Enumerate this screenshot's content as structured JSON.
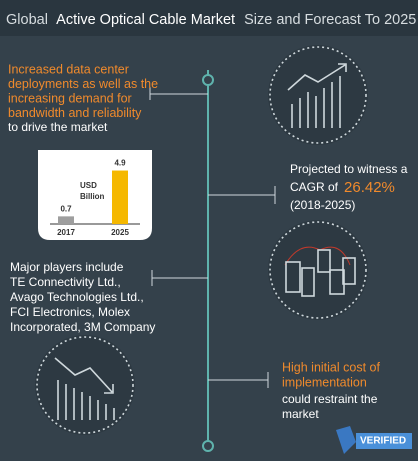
{
  "header": {
    "title_parts": [
      "Global",
      "Active Optical Cable Market",
      "Size and Forecast To 2025"
    ]
  },
  "blocks": [
    {
      "highlight_lines": [
        "Increased data center",
        "deployments as well as the",
        "increasing demand for",
        "bandwidth and reliability"
      ],
      "lines": [
        "to drive the market"
      ]
    },
    {
      "lines_before": [
        "Projected to witness a"
      ],
      "prefix": "CAGR of",
      "highlight": "26.42%",
      "lines_after": [
        "(2018-2025)"
      ]
    },
    {
      "lines": [
        "Major players include",
        "TE Connectivity Ltd.,",
        "Avago Technologies Ltd.,",
        "FCI Electronics, Molex",
        "Incorporated, 3M Company"
      ]
    },
    {
      "highlight_lines": [
        "High initial cost of",
        "implementation"
      ],
      "lines": [
        "could restraint  the",
        "market"
      ]
    }
  ],
  "chart_data": {
    "type": "bar",
    "y_label": [
      "USD",
      "Billion"
    ],
    "categories": [
      "2017",
      "2025"
    ],
    "values": [
      0.7,
      4.9
    ],
    "colors": [
      "#9e9e9e",
      "#f5b800"
    ],
    "ylim": [
      0,
      5.5
    ]
  },
  "logo": {
    "text": "VERIFIED"
  }
}
